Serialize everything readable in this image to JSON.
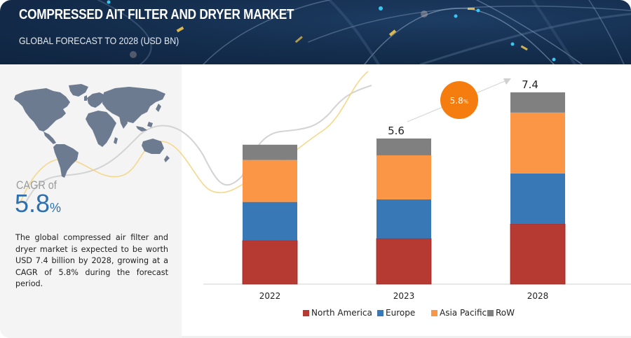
{
  "header": {
    "title": "COMPRESSED AIT FILTER AND DRYER MARKET",
    "subtitle": "GLOBAL FORECAST TO 2028 (USD BN)"
  },
  "left_panel": {
    "map_icon": "world-map-icon",
    "cagr_label": "CAGR of",
    "cagr_number": "5.8",
    "cagr_unit": "%",
    "description": "The global compressed air filter and dryer market is expected to be worth USD 7.4 billion by 2028, growing at a CAGR of 5.8% during the forecast period."
  },
  "growth_badge": {
    "number": "5.8",
    "unit": "%",
    "color": "#f57c0f"
  },
  "chart_data": {
    "type": "bar",
    "stacked": true,
    "title": "COMPRESSED AIT FILTER AND DRYER MARKET",
    "subtitle": "GLOBAL FORECAST TO 2028 (USD BN)",
    "xlabel": "",
    "ylabel": "",
    "ylim": [
      0,
      7.4
    ],
    "grid": false,
    "legend_position": "bottom",
    "categories": [
      "2022",
      "2023",
      "2028"
    ],
    "totals_labels": [
      "",
      "5.6",
      "7.4"
    ],
    "series": [
      {
        "name": "North America",
        "color": "#b73a32",
        "values": [
          1.68,
          1.76,
          2.32
        ]
      },
      {
        "name": "Europe",
        "color": "#3878b6",
        "values": [
          1.49,
          1.51,
          1.95
        ]
      },
      {
        "name": "Asia Pacific",
        "color": "#fa9645",
        "values": [
          1.62,
          1.7,
          2.35
        ]
      },
      {
        "name": "RoW",
        "color": "#808080",
        "values": [
          0.59,
          0.65,
          0.78
        ]
      }
    ],
    "annotations": [
      "5.8%"
    ]
  }
}
